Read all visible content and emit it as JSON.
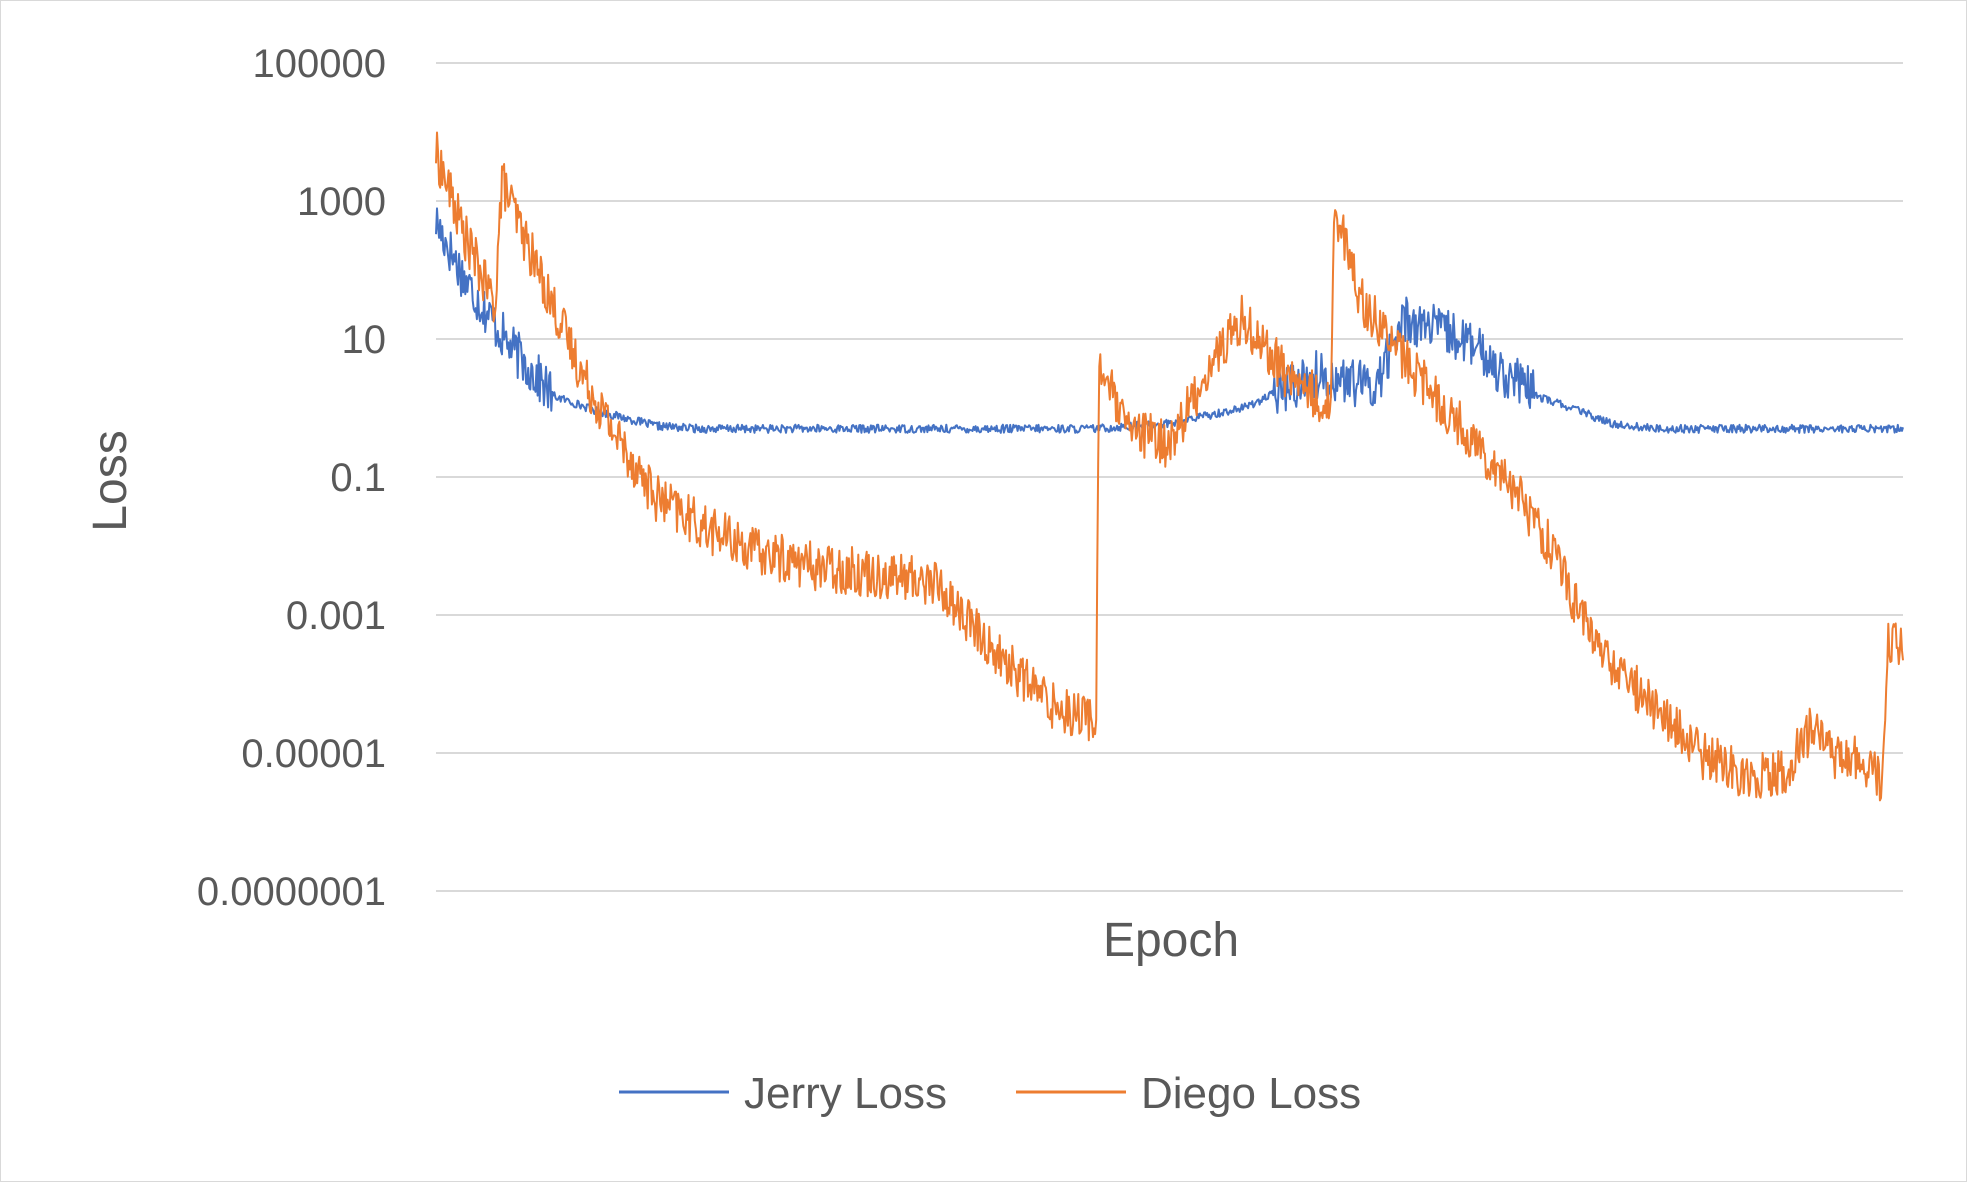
{
  "chart_data": {
    "type": "line",
    "title": "",
    "xlabel": "Epoch",
    "ylabel": "Loss",
    "y_scale": "log",
    "ylim": [
      1e-07,
      100000
    ],
    "y_ticks": [
      {
        "value": 100000,
        "label": "100000"
      },
      {
        "value": 1000,
        "label": "1000"
      },
      {
        "value": 10,
        "label": "10"
      },
      {
        "value": 0.1,
        "label": "0.1"
      },
      {
        "value": 0.001,
        "label": "0.001"
      },
      {
        "value": 1e-05,
        "label": "0.00001"
      },
      {
        "value": 1e-07,
        "label": "0.0000001"
      }
    ],
    "x_ticks_shown": false,
    "grid": "horizontal",
    "legend_position": "bottom",
    "series": [
      {
        "name": "Jerry Loss",
        "color": "#4472C4",
        "x": [
          0,
          2,
          5,
          8,
          11,
          15,
          18,
          20,
          22,
          25,
          30,
          35,
          40,
          45,
          50,
          55,
          60,
          64,
          66,
          70,
          73,
          75,
          78,
          80,
          83,
          85,
          88,
          90,
          92,
          95,
          98,
          100
        ],
        "y": [
          500,
          70,
          8,
          1.5,
          0.9,
          0.55,
          0.5,
          0.5,
          0.5,
          0.5,
          0.5,
          0.5,
          0.5,
          0.5,
          0.6,
          1.0,
          3,
          2,
          20,
          10,
          3,
          1.5,
          0.9,
          0.6,
          0.5,
          0.5,
          0.5,
          0.5,
          0.5,
          0.5,
          0.5,
          0.5
        ]
      },
      {
        "name": "Diego Loss",
        "color": "#ED7D31",
        "x": [
          0,
          2,
          4,
          4.5,
          6,
          8,
          10,
          12,
          15,
          18,
          22,
          26,
          30,
          34,
          38,
          42,
          45,
          45.2,
          47,
          50,
          53,
          55,
          58,
          61,
          61.2,
          63,
          66,
          70,
          73,
          76,
          78,
          80,
          83,
          86,
          89,
          92,
          94,
          95,
          97,
          98.5,
          99,
          100
        ],
        "y": [
          5000,
          300,
          30,
          2000,
          300,
          30,
          3,
          0.5,
          0.05,
          0.02,
          0.008,
          0.005,
          0.004,
          0.003,
          0.0003,
          5e-05,
          3e-05,
          5,
          0.5,
          0.3,
          5,
          20,
          3,
          1,
          1000,
          40,
          5,
          0.5,
          0.1,
          0.01,
          0.001,
          0.0002,
          5e-05,
          1e-05,
          5e-06,
          5e-06,
          3e-05,
          1e-05,
          8e-06,
          4e-06,
          0.0004,
          0.0003
        ]
      }
    ]
  }
}
